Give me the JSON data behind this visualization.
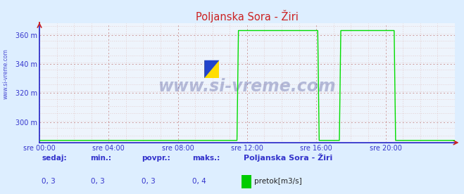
{
  "title": "Poljanska Sora - Žiri",
  "bg_color": "#ddeeff",
  "plot_bg_color": "#eef4fc",
  "line_color": "#00dd00",
  "axis_color": "#3333cc",
  "grid_color_major": "#cc9999",
  "grid_color_minor": "#ddbbbb",
  "yticks": [
    300,
    320,
    340,
    360
  ],
  "ytick_labels": [
    "300 m",
    "320 m",
    "340 m",
    "360 m"
  ],
  "ylim": [
    286,
    368
  ],
  "xlim_hours": [
    0,
    24
  ],
  "xtick_positions": [
    0,
    4,
    8,
    12,
    16,
    20
  ],
  "xtick_labels": [
    "sre 00:00",
    "sre 04:00",
    "sre 08:00",
    "sre 12:00",
    "sre 16:00",
    "sre 20:00"
  ],
  "watermark": "www.si-vreme.com",
  "watermark_color": "#1a237e",
  "footer_labels": [
    "sedaj:",
    "min.:",
    "povpr.:",
    "maks.:"
  ],
  "footer_values": [
    "0, 3",
    "0, 3",
    "0, 3",
    "0, 4"
  ],
  "footer_station": "Poljanska Sora - Žiri",
  "footer_legend": "pretok[m3/s]",
  "footer_color": "#3333cc",
  "legend_color": "#00cc00",
  "title_color": "#cc2222",
  "spike1_start": 11.5,
  "spike1_end": 16.15,
  "spike2_start": 17.35,
  "spike2_end": 20.55,
  "spike_height": 363,
  "baseline": 287.5,
  "left_label_color": "#3333cc"
}
